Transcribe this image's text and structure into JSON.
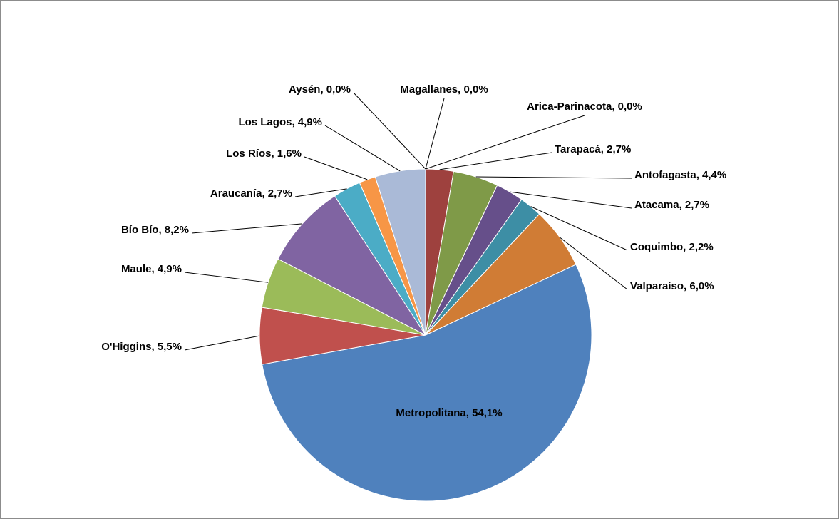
{
  "chart_data": {
    "type": "pie",
    "categories": [
      "Arica-Parinacota",
      "Tarapacá",
      "Antofagasta",
      "Atacama",
      "Coquimbo",
      "Valparaíso",
      "Metropolitana",
      "O'Higgins",
      "Maule",
      "Bío Bío",
      "Araucanía",
      "Los Ríos",
      "Los Lagos",
      "Aysén",
      "Magallanes"
    ],
    "values": [
      0.0,
      2.7,
      4.4,
      2.7,
      2.2,
      6.0,
      54.1,
      5.5,
      4.9,
      8.2,
      2.7,
      1.6,
      4.9,
      0.0,
      0.0
    ],
    "value_labels": [
      "0,0%",
      "2,7%",
      "4,4%",
      "2,7%",
      "2,2%",
      "6,0%",
      "54,1%",
      "5,5%",
      "4,9%",
      "8,2%",
      "2,7%",
      "1,6%",
      "4,9%",
      "0,0%",
      "0,0%"
    ],
    "label_separator": ", ",
    "colors": [
      "#4f81bd",
      "#9e413e",
      "#7f9a48",
      "#664f8a",
      "#3d8ea5",
      "#d07c35",
      "#4f81bd",
      "#c0504d",
      "#9bbb59",
      "#8064a2",
      "#4bacc6",
      "#f79646",
      "#aabad7",
      "#4f81bd",
      "#4f81bd"
    ]
  }
}
